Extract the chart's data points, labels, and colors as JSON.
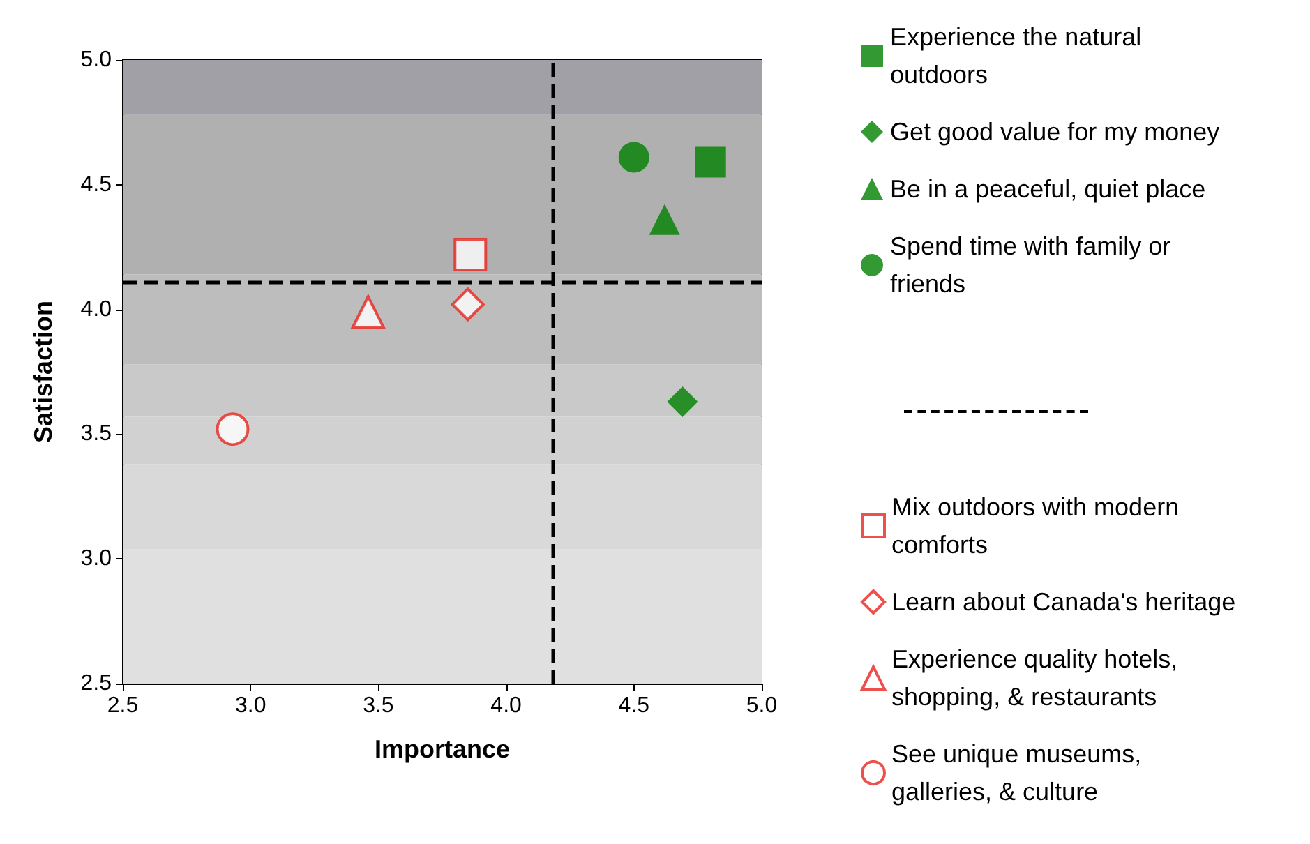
{
  "chart_data": {
    "type": "scatter",
    "xlabel": "Importance",
    "ylabel": "Satisfaction",
    "xlim": [
      2.5,
      5.0
    ],
    "ylim": [
      2.5,
      5.0
    ],
    "xticks": [
      {
        "value": 2.5,
        "label": "2.5"
      },
      {
        "value": 3,
        "label": "3.0"
      },
      {
        "value": 3.5,
        "label": "3.5"
      },
      {
        "value": 4,
        "label": "4.0"
      },
      {
        "value": 4.5,
        "label": "4.5"
      },
      {
        "value": 5,
        "label": "5.0"
      }
    ],
    "yticks": [
      {
        "value": 2.5,
        "label": "2.5"
      },
      {
        "value": 3,
        "label": "3.0"
      },
      {
        "value": 3.5,
        "label": "3.5"
      },
      {
        "value": 4,
        "label": "4.0"
      },
      {
        "value": 4.5,
        "label": "4.5"
      },
      {
        "value": 5,
        "label": "5.0"
      }
    ],
    "grid": false,
    "legend": "right",
    "series": [
      {
        "name": "Experience the natural outdoors",
        "color": "#008000",
        "marker": "square",
        "x": [
          4.8
        ],
        "values": [
          4.59
        ]
      },
      {
        "name": "Get good value for my money",
        "color": "#008000",
        "marker": "diamond",
        "x": [
          4.69
        ],
        "values": [
          3.63
        ]
      },
      {
        "name": "Be in a peaceful, quiet place",
        "color": "#008000",
        "marker": "triangle",
        "x": [
          4.62
        ],
        "values": [
          4.36
        ]
      },
      {
        "name": "Spend time with family or friends",
        "color": "#008000",
        "marker": "circle",
        "x": [
          4.5
        ],
        "values": [
          4.61
        ]
      },
      {
        "name": "Mix outdoors with modern comforts",
        "color": "#e8261e",
        "marker": "square",
        "x": [
          3.86
        ],
        "values": [
          4.22
        ]
      },
      {
        "name": "Learn about Canada's heritage",
        "color": "#e8261e",
        "marker": "diamond",
        "x": [
          3.85
        ],
        "values": [
          4.02
        ]
      },
      {
        "name": "Experience quality hotels, shopping, & restaurants",
        "color": "#e8261e",
        "marker": "triangle",
        "x": [
          3.46
        ],
        "values": [
          3.99
        ]
      },
      {
        "name": "See unique museums, galleries, & culture",
        "color": "#e8261e",
        "marker": "circle",
        "x": [
          2.93
        ],
        "values": [
          3.52
        ]
      }
    ],
    "ref_lines": [
      {
        "axis": "x",
        "value": 4.18,
        "line_style": "dashed",
        "color": "#000000"
      },
      {
        "axis": "y",
        "value": 4.11,
        "line_style": "dashed",
        "color": "#000000"
      }
    ],
    "bands": [
      {
        "axis": "y",
        "from": 2.5,
        "to": 3.04,
        "color": "#e0e0e0"
      },
      {
        "axis": "y",
        "from": 3.04,
        "to": 3.38,
        "color": "#d9d9d9"
      },
      {
        "axis": "y",
        "from": 3.38,
        "to": 3.57,
        "color": "#d1d1d1"
      },
      {
        "axis": "y",
        "from": 3.57,
        "to": 3.78,
        "color": "#c9c9c9"
      },
      {
        "axis": "y",
        "from": 3.78,
        "to": 4.14,
        "color": "#bdbdbd"
      },
      {
        "axis": "y",
        "from": 4.14,
        "to": 4.78,
        "color": "#b0b0b0"
      },
      {
        "axis": "y",
        "from": 4.78,
        "to": 5.0,
        "color": "#a0a0a6"
      }
    ]
  }
}
